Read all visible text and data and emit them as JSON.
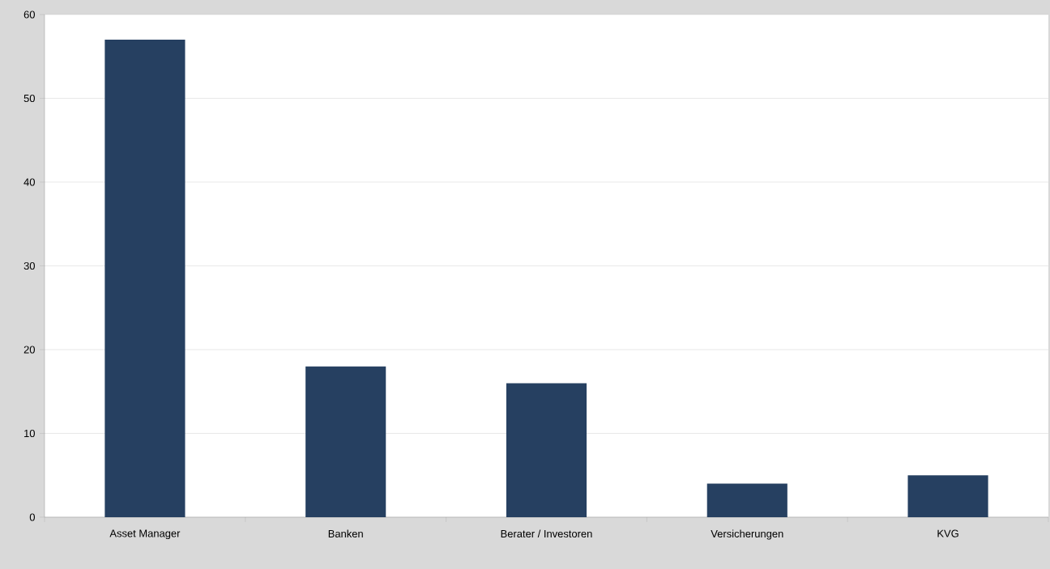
{
  "chart_data": {
    "type": "bar",
    "categories": [
      "Asset Manager",
      "Banken",
      "Berater / Investoren",
      "Versicherungen",
      "KVG"
    ],
    "values": [
      57,
      18,
      16,
      4,
      5
    ],
    "color": "#264061",
    "ylim": [
      0,
      60
    ],
    "yticks": [
      0,
      10,
      20,
      30,
      40,
      50,
      60
    ],
    "grid": "y"
  }
}
